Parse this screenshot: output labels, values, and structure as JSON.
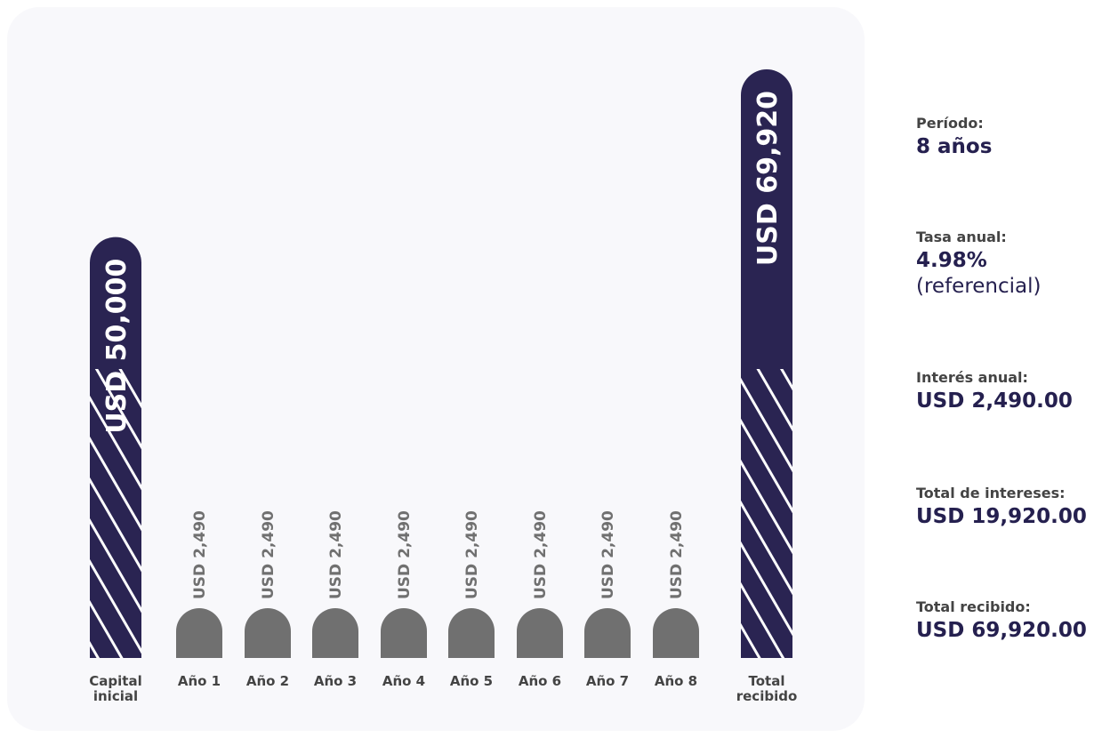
{
  "chart_data": {
    "type": "bar",
    "categories": [
      "Capital\ninicial",
      "Año 1",
      "Año 2",
      "Año 3",
      "Año 4",
      "Año 5",
      "Año 6",
      "Año 7",
      "Año 8",
      "Total\nrecibido"
    ],
    "values": [
      50000,
      2490,
      2490,
      2490,
      2490,
      2490,
      2490,
      2490,
      2490,
      69920
    ],
    "labels": [
      "USD 50,000",
      "USD 2,490",
      "USD 2,490",
      "USD 2,490",
      "USD 2,490",
      "USD 2,490",
      "USD 2,490",
      "USD 2,490",
      "USD 2,490",
      "USD 69,920"
    ],
    "ylim": [
      0,
      69920
    ],
    "grid": false,
    "colors": {
      "capital": "#2a2452",
      "interest": "#707070",
      "stripe": "#ffffff",
      "category_text": "#444444",
      "interest_label": "#707070",
      "capital_label": "#ffffff"
    }
  },
  "summary": {
    "periodo_label": "Período:",
    "periodo_value": "8 años",
    "tasa_label": "Tasa anual:",
    "tasa_value": "4.98%",
    "tasa_note": "(referencial)",
    "interes_label": "Interés anual:",
    "interes_value": "USD 2,490.00",
    "total_intereses_label": "Total de intereses:",
    "total_intereses_value": "USD 19,920.00",
    "total_recibido_label": "Total recibido:",
    "total_recibido_value": "USD 69,920.00"
  }
}
